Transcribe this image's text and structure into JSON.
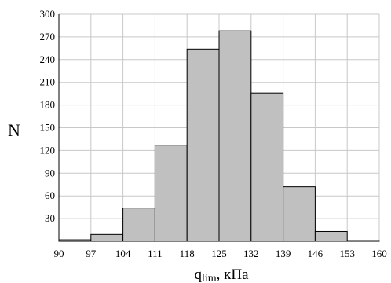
{
  "chart_data": {
    "type": "bar",
    "title": "",
    "xlabel": "q",
    "xlabel_sub": "lim",
    "xlabel_unit": ", кПа",
    "ylabel": "N",
    "x_ticks": [
      90,
      97,
      104,
      111,
      118,
      125,
      132,
      139,
      146,
      153,
      160
    ],
    "y_ticks": [
      30,
      60,
      90,
      120,
      150,
      180,
      210,
      240,
      270,
      300
    ],
    "xlim": [
      90,
      160
    ],
    "ylim": [
      0,
      300
    ],
    "grid": true,
    "bins": [
      {
        "from": 90,
        "to": 97,
        "value": 2
      },
      {
        "from": 97,
        "to": 104,
        "value": 9
      },
      {
        "from": 104,
        "to": 111,
        "value": 44
      },
      {
        "from": 111,
        "to": 118,
        "value": 127
      },
      {
        "from": 118,
        "to": 125,
        "value": 254
      },
      {
        "from": 125,
        "to": 132,
        "value": 278
      },
      {
        "from": 132,
        "to": 139,
        "value": 196
      },
      {
        "from": 139,
        "to": 146,
        "value": 72
      },
      {
        "from": 146,
        "to": 153,
        "value": 13
      },
      {
        "from": 153,
        "to": 160,
        "value": 1
      }
    ],
    "colors": {
      "bar_fill": "#c0c0c0",
      "bar_stroke": "#000000",
      "grid": "#c8c8c8",
      "axis": "#000000"
    }
  }
}
